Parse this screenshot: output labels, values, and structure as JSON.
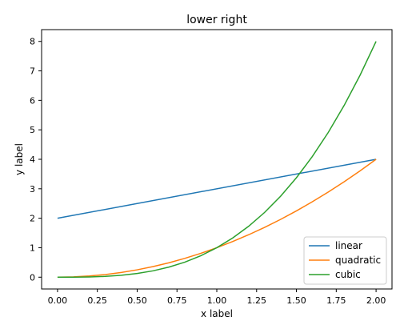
{
  "chart_data": {
    "type": "line",
    "title": "lower right",
    "xlabel": "x label",
    "ylabel": "y label",
    "xlim": [
      -0.1,
      2.1
    ],
    "ylim": [
      -0.4,
      8.4
    ],
    "xticks": [
      0.0,
      0.25,
      0.5,
      0.75,
      1.0,
      1.25,
      1.5,
      1.75,
      2.0
    ],
    "xtick_labels": [
      "0.00",
      "0.25",
      "0.50",
      "0.75",
      "1.00",
      "1.25",
      "1.50",
      "1.75",
      "2.00"
    ],
    "yticks": [
      0,
      1,
      2,
      3,
      4,
      5,
      6,
      7,
      8
    ],
    "ytick_labels": [
      "0",
      "1",
      "2",
      "3",
      "4",
      "5",
      "6",
      "7",
      "8"
    ],
    "grid": false,
    "legend_position": "lower right",
    "series": [
      {
        "name": "linear",
        "color": "#1f77b4",
        "x": [
          0.0,
          2.0
        ],
        "y": [
          2.0,
          4.0
        ]
      },
      {
        "name": "quadratic",
        "color": "#ff7f0e",
        "x": [
          0.0,
          0.1,
          0.2,
          0.3,
          0.4,
          0.5,
          0.6,
          0.7,
          0.8,
          0.9,
          1.0,
          1.1,
          1.2,
          1.3,
          1.4,
          1.5,
          1.6,
          1.7,
          1.8,
          1.9,
          2.0
        ],
        "y": [
          0.0,
          0.01,
          0.04,
          0.09,
          0.16,
          0.25,
          0.36,
          0.49,
          0.64,
          0.81,
          1.0,
          1.21,
          1.44,
          1.69,
          1.96,
          2.25,
          2.56,
          2.89,
          3.24,
          3.61,
          4.0
        ]
      },
      {
        "name": "cubic",
        "color": "#2ca02c",
        "x": [
          0.0,
          0.1,
          0.2,
          0.3,
          0.4,
          0.5,
          0.6,
          0.7,
          0.8,
          0.9,
          1.0,
          1.1,
          1.2,
          1.3,
          1.4,
          1.5,
          1.6,
          1.7,
          1.8,
          1.9,
          2.0
        ],
        "y": [
          0.0,
          0.001,
          0.008,
          0.027,
          0.064,
          0.125,
          0.216,
          0.343,
          0.512,
          0.729,
          1.0,
          1.331,
          1.728,
          2.197,
          2.744,
          3.375,
          4.096,
          4.913,
          5.832,
          6.859,
          8.0
        ]
      }
    ]
  }
}
